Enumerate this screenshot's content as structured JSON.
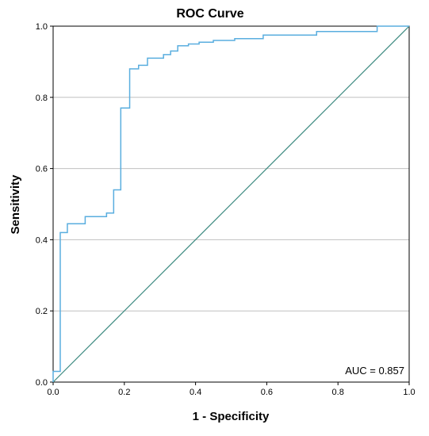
{
  "chart_data": {
    "type": "line",
    "title": "ROC Curve",
    "xlabel": "1 - Specificity",
    "ylabel": "Sensitivity",
    "xlim": [
      0,
      1
    ],
    "ylim": [
      0,
      1
    ],
    "x_ticks": [
      "0.0",
      "0.2",
      "0.4",
      "0.6",
      "0.8",
      "1.0"
    ],
    "y_ticks": [
      "0.0",
      "0.2",
      "0.4",
      "0.6",
      "0.8",
      "1.0"
    ],
    "grid": "horizontal",
    "annotation": "AUC = 0.857",
    "colors": {
      "roc": "#5aaedf",
      "reference": "#3c8a80",
      "grid": "#c0c0c0",
      "axis": "#000000"
    },
    "series": [
      {
        "x": [
          0,
          0,
          0.02,
          0.02,
          0.04,
          0.04,
          0.09,
          0.09,
          0.15,
          0.15,
          0.17,
          0.17,
          0.19,
          0.19,
          0.215,
          0.215,
          0.24,
          0.24,
          0.265,
          0.265,
          0.31,
          0.31,
          0.33,
          0.33,
          0.35,
          0.35,
          0.38,
          0.38,
          0.41,
          0.41,
          0.45,
          0.45,
          0.51,
          0.51,
          0.59,
          0.59,
          0.74,
          0.74,
          0.91,
          0.91,
          1.0
        ],
        "y": [
          0,
          0.03,
          0.03,
          0.42,
          0.42,
          0.445,
          0.445,
          0.465,
          0.465,
          0.475,
          0.475,
          0.54,
          0.54,
          0.77,
          0.77,
          0.88,
          0.88,
          0.89,
          0.89,
          0.91,
          0.91,
          0.92,
          0.92,
          0.93,
          0.93,
          0.945,
          0.945,
          0.95,
          0.95,
          0.955,
          0.955,
          0.96,
          0.96,
          0.965,
          0.965,
          0.975,
          0.975,
          0.985,
          0.985,
          1.0,
          1.0
        ]
      },
      {
        "x": [
          0,
          1
        ],
        "y": [
          0,
          1
        ]
      }
    ]
  }
}
